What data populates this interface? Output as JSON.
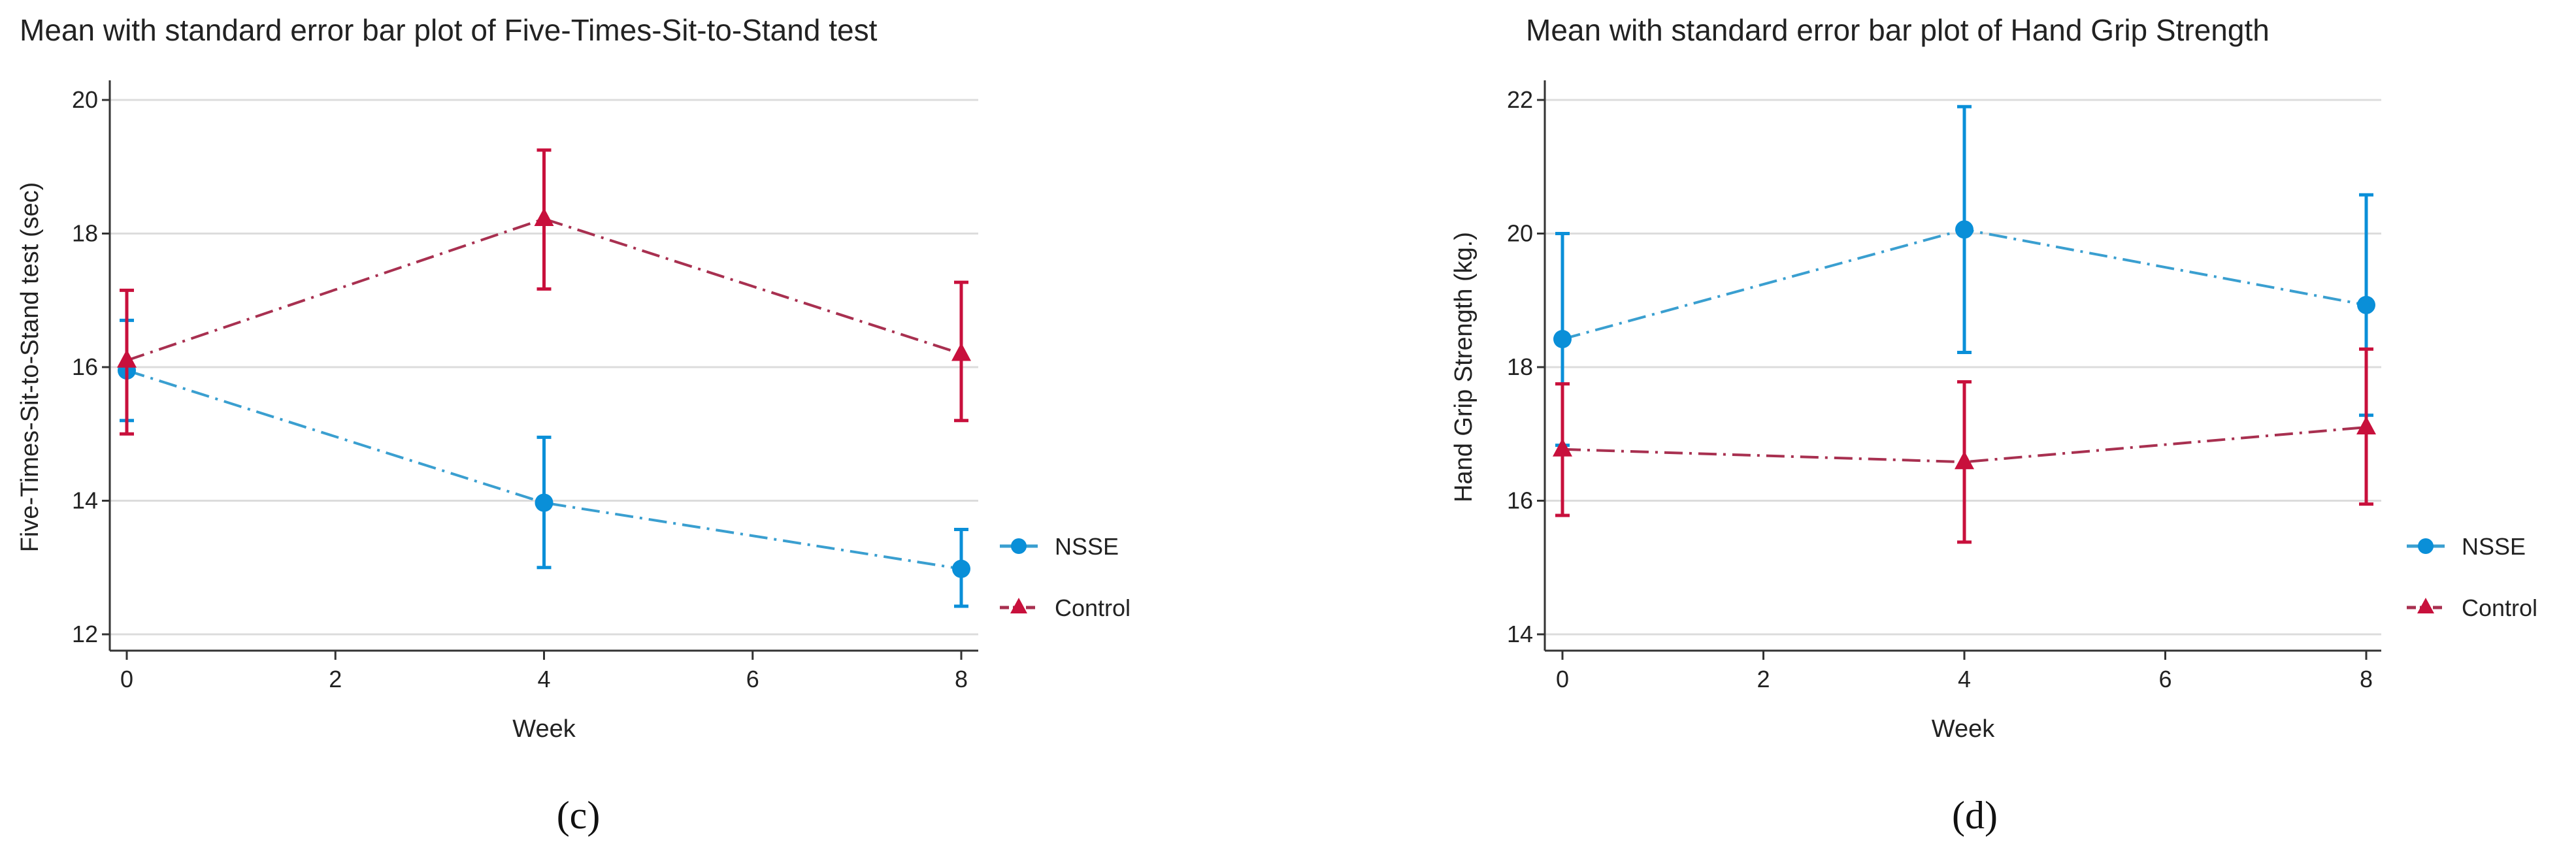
{
  "chart_data": [
    {
      "type": "line",
      "title": "Mean with standard error bar plot of Five-Times-Sit-to-Stand test",
      "xlabel": "Week",
      "ylabel": "Five-Times-Sit-to-Stand test  (sec)",
      "panel_label": "(c)",
      "x": [
        0,
        4,
        8
      ],
      "xticks": [
        0,
        2,
        4,
        6,
        8
      ],
      "yticks": [
        12,
        14,
        16,
        18,
        20
      ],
      "xlim": [
        -0.35,
        8.35
      ],
      "ylim": [
        11.75,
        20.2
      ],
      "grid": true,
      "legend_position": "right",
      "series": [
        {
          "name": "NSSE",
          "color": "#0a8fd8",
          "line_color": "#3a9fd0",
          "marker": "circle",
          "values": [
            15.95,
            13.97,
            12.98
          ],
          "upper": [
            16.7,
            14.95,
            13.57
          ],
          "lower": [
            15.2,
            13.0,
            12.42
          ]
        },
        {
          "name": "Control",
          "color": "#c8103c",
          "line_color": "#a83050",
          "marker": "triangle",
          "values": [
            16.1,
            18.22,
            16.2
          ],
          "upper": [
            17.15,
            19.25,
            17.27
          ],
          "lower": [
            15.0,
            17.17,
            15.2
          ]
        }
      ]
    },
    {
      "type": "line",
      "title": "Mean with standard error bar plot of Hand Grip Strength",
      "xlabel": "Week",
      "ylabel": "Hand Grip Strength (kg.)",
      "panel_label": "(d)",
      "x": [
        0,
        4,
        8
      ],
      "xticks": [
        0,
        2,
        4,
        6,
        8
      ],
      "yticks": [
        14,
        16,
        18,
        20,
        22
      ],
      "xlim": [
        -0.35,
        8.35
      ],
      "ylim": [
        13.75,
        22.2
      ],
      "grid": true,
      "legend_position": "right",
      "series": [
        {
          "name": "NSSE",
          "color": "#0a8fd8",
          "line_color": "#3a9fd0",
          "marker": "circle",
          "values": [
            18.42,
            20.06,
            18.93
          ],
          "upper": [
            20.0,
            21.9,
            20.58
          ],
          "lower": [
            16.83,
            18.22,
            17.28
          ]
        },
        {
          "name": "Control",
          "color": "#c8103c",
          "line_color": "#a83050",
          "marker": "triangle",
          "values": [
            16.77,
            16.58,
            17.1
          ],
          "upper": [
            17.75,
            17.78,
            18.27
          ],
          "lower": [
            15.78,
            15.38,
            15.95
          ]
        }
      ]
    }
  ]
}
